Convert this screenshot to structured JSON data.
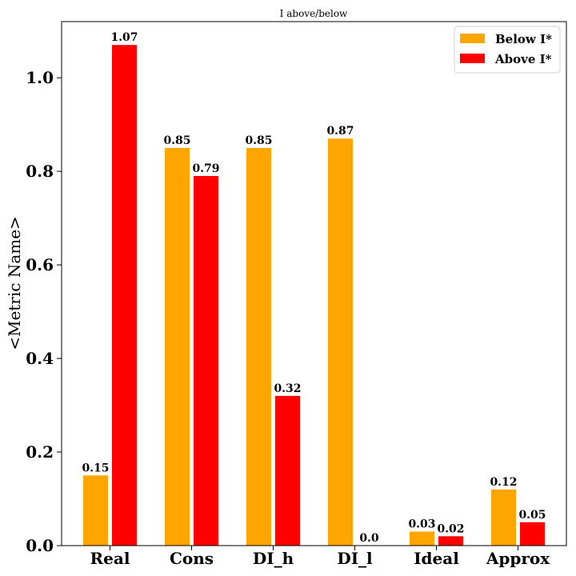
{
  "chart_data": {
    "type": "bar",
    "title": "I above/below",
    "xlabel": "",
    "ylabel": "<Metric Name>",
    "ylim": [
      0,
      1.12
    ],
    "yticks": [
      "0.0",
      "0.2",
      "0.4",
      "0.6",
      "0.8",
      "1.0"
    ],
    "ytick_values": [
      0,
      0.2,
      0.4,
      0.6,
      0.8,
      1.0
    ],
    "categories": [
      "Real",
      "Cons",
      "DI_h",
      "DI_l",
      "Ideal",
      "Approx"
    ],
    "series": [
      {
        "name": "Below I*",
        "color": "#FFA500",
        "values": [
          0.15,
          0.85,
          0.85,
          0.87,
          0.03,
          0.12
        ],
        "labels": [
          "0.15",
          "0.85",
          "0.85",
          "0.87",
          "0.03",
          "0.12"
        ]
      },
      {
        "name": "Above I*",
        "color": "#FF0000",
        "values": [
          1.07,
          0.79,
          0.32,
          0.0,
          0.02,
          0.05
        ],
        "labels": [
          "1.07",
          "0.79",
          "0.32",
          "0.0",
          "0.02",
          "0.05"
        ]
      }
    ],
    "legend_position": "top-right",
    "grid": false
  }
}
